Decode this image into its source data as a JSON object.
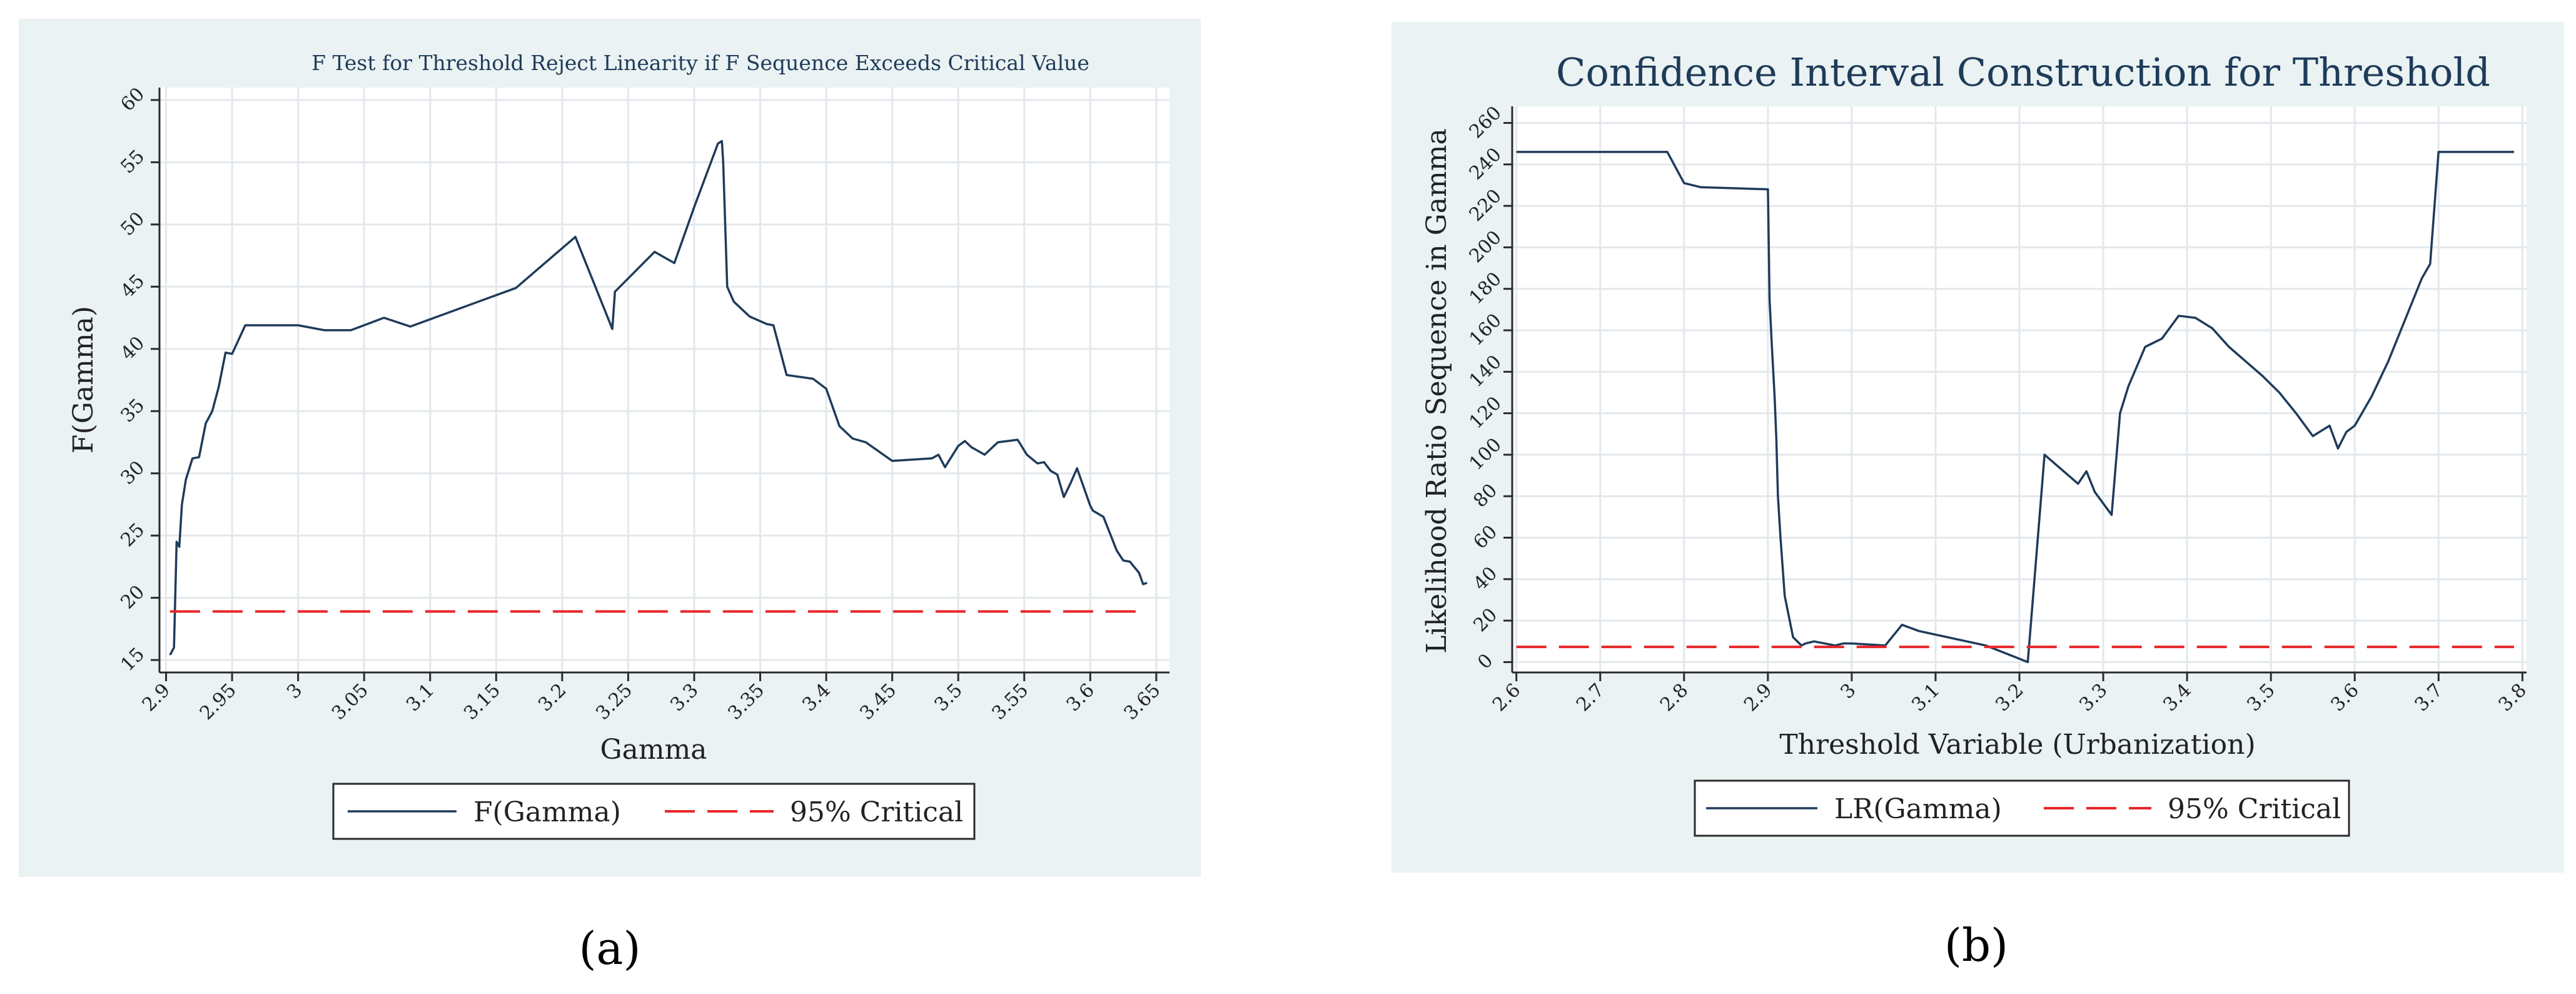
{
  "chart_data": [
    {
      "type": "line",
      "title": "F Test for Threshold Reject Linearity if F Sequence Exceeds Critical Value",
      "xlabel": "Gamma",
      "ylabel": "F(Gamma)",
      "xlim": [
        2.895,
        3.66
      ],
      "ylim": [
        14,
        61
      ],
      "xticks": [
        "2.9",
        "2.95",
        "3",
        "3.05",
        "3.1",
        "3.15",
        "3.2",
        "3.25",
        "3.3",
        "3.35",
        "3.4",
        "3.45",
        "3.5",
        "3.55",
        "3.6",
        "3.65"
      ],
      "yticks": [
        "15",
        "20",
        "25",
        "30",
        "35",
        "40",
        "45",
        "50",
        "55",
        "60"
      ],
      "grid": true,
      "legend": "bottom",
      "legend_entries": [
        "F(Gamma)",
        "95% Critical"
      ],
      "caption": "(a)",
      "series": [
        {
          "name": "F(Gamma)",
          "x": [
            2.903,
            2.906,
            2.908,
            2.91,
            2.912,
            2.915,
            2.92,
            2.925,
            2.93,
            2.935,
            2.94,
            2.945,
            2.95,
            2.96,
            3.0,
            3.02,
            3.04,
            3.065,
            3.085,
            3.165,
            3.21,
            3.238,
            3.24,
            3.27,
            3.285,
            3.3,
            3.318,
            3.321,
            3.322,
            3.325,
            3.33,
            3.342,
            3.355,
            3.36,
            3.37,
            3.39,
            3.4,
            3.41,
            3.42,
            3.43,
            3.45,
            3.48,
            3.485,
            3.49,
            3.5,
            3.505,
            3.51,
            3.52,
            3.53,
            3.545,
            3.552,
            3.56,
            3.565,
            3.57,
            3.575,
            3.58,
            3.585,
            3.59,
            3.6,
            3.602,
            3.61,
            3.62,
            3.625,
            3.63,
            3.637,
            3.64,
            3.643
          ],
          "values": [
            15.4,
            16,
            24.5,
            24.1,
            27.5,
            29.5,
            31.2,
            31.3,
            34,
            35,
            37,
            39.7,
            39.6,
            41.9,
            41.9,
            41.5,
            41.5,
            42.5,
            41.8,
            44.9,
            49,
            41.6,
            44.6,
            47.8,
            46.9,
            51.4,
            56.5,
            56.7,
            55,
            45,
            43.8,
            42.6,
            42,
            41.9,
            37.9,
            37.6,
            36.8,
            33.8,
            32.8,
            32.5,
            31,
            31.2,
            31.5,
            30.5,
            32.2,
            32.6,
            32.1,
            31.5,
            32.5,
            32.7,
            31.5,
            30.8,
            30.9,
            30.2,
            29.9,
            28.1,
            29.2,
            30.4,
            27.4,
            27,
            26.5,
            23.8,
            23,
            22.9,
            22,
            21.1,
            21.2
          ]
        },
        {
          "name": "95% Critical",
          "x": [
            2.903,
            3.643
          ],
          "values": [
            18.9,
            18.9
          ]
        }
      ]
    },
    {
      "type": "line",
      "title": "Confidence Interval Construction for Threshold",
      "xlabel": "Threshold Variable (Urbanization)",
      "ylabel": "Likelihood Ratio Sequence in Gamma",
      "xlim": [
        2.595,
        3.805
      ],
      "ylim": [
        -5,
        268
      ],
      "xticks": [
        "2.6",
        "2.7",
        "2.8",
        "2.9",
        "3",
        "3.1",
        "3.2",
        "3.3",
        "3.4",
        "3.5",
        "3.6",
        "3.7",
        "3.8"
      ],
      "yticks": [
        "0",
        "20",
        "40",
        "60",
        "80",
        "100",
        "120",
        "140",
        "160",
        "180",
        "200",
        "220",
        "240",
        "260"
      ],
      "grid": true,
      "legend": "bottom",
      "legend_entries": [
        "LR(Gamma)",
        "95% Critical"
      ],
      "caption": "(b)",
      "series": [
        {
          "name": "LR(Gamma)",
          "x": [
            2.6,
            2.78,
            2.8,
            2.82,
            2.9,
            2.902,
            2.905,
            2.908,
            2.91,
            2.912,
            2.915,
            2.92,
            2.93,
            2.94,
            2.945,
            2.955,
            2.98,
            2.99,
            3.0,
            3.04,
            3.06,
            3.08,
            3.16,
            3.21,
            3.23,
            3.27,
            3.28,
            3.29,
            3.31,
            3.32,
            3.33,
            3.35,
            3.37,
            3.39,
            3.41,
            3.43,
            3.45,
            3.47,
            3.49,
            3.51,
            3.53,
            3.55,
            3.57,
            3.58,
            3.59,
            3.6,
            3.62,
            3.64,
            3.66,
            3.68,
            3.69,
            3.7,
            3.702,
            3.71,
            3.79
          ],
          "values": [
            246,
            246,
            231,
            229,
            228,
            175,
            150,
            128,
            108,
            80,
            60,
            32,
            12,
            8,
            9,
            10,
            8,
            9,
            9,
            8,
            18,
            15,
            8,
            0,
            100,
            86,
            92,
            82,
            71,
            120,
            133,
            152,
            156,
            167,
            166,
            161,
            152,
            145,
            138,
            130,
            120,
            109,
            114,
            103,
            111,
            114,
            128,
            145,
            165,
            185,
            192,
            246,
            246,
            246,
            246
          ]
        },
        {
          "name": "95% Critical",
          "x": [
            2.6,
            3.79
          ],
          "values": [
            7.35,
            7.35
          ]
        }
      ]
    }
  ]
}
